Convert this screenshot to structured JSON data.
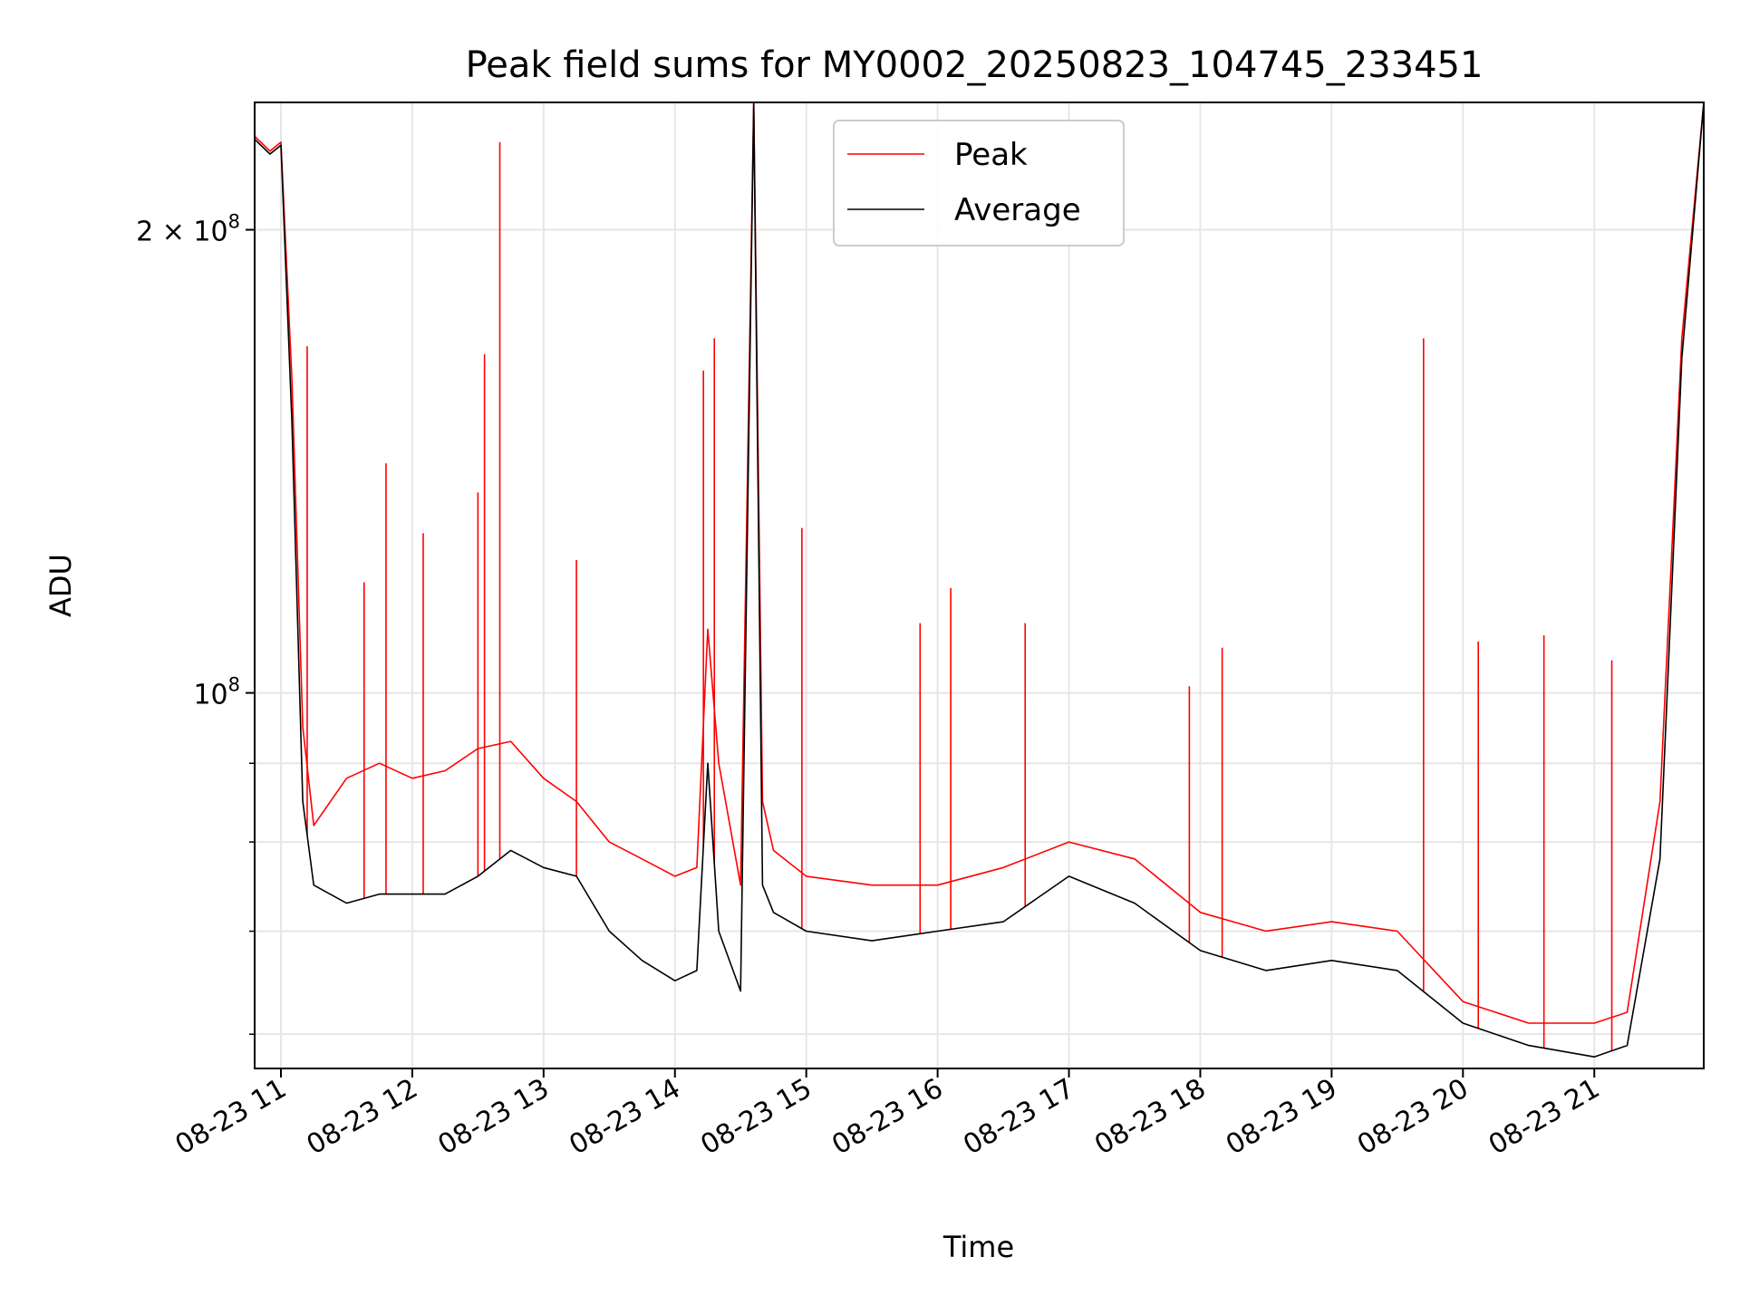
{
  "chart_data": {
    "type": "line",
    "title": "Peak field sums for MY0002_20250823_104745_233451",
    "xlabel": "Time",
    "ylabel": "ADU",
    "yscale": "log",
    "ylim": [
      57000000,
      242000000
    ],
    "xlim": [
      "2025-08-23 10:48",
      "2025-08-23 21:50"
    ],
    "grid": true,
    "legend_position": "upper center",
    "x_tick_labels": [
      "08-23 11",
      "08-23 12",
      "08-23 13",
      "08-23 14",
      "08-23 15",
      "08-23 16",
      "08-23 17",
      "08-23 18",
      "08-23 19",
      "08-23 20",
      "08-23 21"
    ],
    "y_tick_labels": [
      {
        "value": 200000000,
        "label": "2 × 10",
        "exponent": "8"
      },
      {
        "value": 100000000,
        "label": "10",
        "exponent": "8"
      }
    ],
    "series": [
      {
        "name": "Peak",
        "color": "#ff0000",
        "x": [
          "2025-08-23 10:48",
          "2025-08-23 10:55",
          "2025-08-23 11:00",
          "2025-08-23 11:05",
          "2025-08-23 11:10",
          "2025-08-23 11:15",
          "2025-08-23 11:30",
          "2025-08-23 11:45",
          "2025-08-23 12:00",
          "2025-08-23 12:15",
          "2025-08-23 12:30",
          "2025-08-23 12:45",
          "2025-08-23 13:00",
          "2025-08-23 13:15",
          "2025-08-23 13:30",
          "2025-08-23 13:45",
          "2025-08-23 14:00",
          "2025-08-23 14:10",
          "2025-08-23 14:15",
          "2025-08-23 14:20",
          "2025-08-23 14:30",
          "2025-08-23 14:36",
          "2025-08-23 14:40",
          "2025-08-23 14:45",
          "2025-08-23 15:00",
          "2025-08-23 15:30",
          "2025-08-23 16:00",
          "2025-08-23 16:30",
          "2025-08-23 17:00",
          "2025-08-23 17:30",
          "2025-08-23 18:00",
          "2025-08-23 18:30",
          "2025-08-23 19:00",
          "2025-08-23 19:30",
          "2025-08-23 20:00",
          "2025-08-23 20:30",
          "2025-08-23 21:00",
          "2025-08-23 21:15",
          "2025-08-23 21:30",
          "2025-08-23 21:40",
          "2025-08-23 21:50"
        ],
        "values": [
          230000000,
          225000000,
          228000000,
          160000000,
          95000000,
          82000000,
          88000000,
          90000000,
          88000000,
          89000000,
          92000000,
          93000000,
          88000000,
          85000000,
          80000000,
          78000000,
          76000000,
          77000000,
          110000000,
          90000000,
          75000000,
          242000000,
          85000000,
          79000000,
          76000000,
          75000000,
          75000000,
          77000000,
          80000000,
          78000000,
          72000000,
          70000000,
          71000000,
          70000000,
          63000000,
          61000000,
          61000000,
          62000000,
          85000000,
          170000000,
          242000000
        ],
        "spikes": [
          {
            "x": "2025-08-23 11:12",
            "value": 168000000
          },
          {
            "x": "2025-08-23 11:38",
            "value": 118000000
          },
          {
            "x": "2025-08-23 11:48",
            "value": 141000000
          },
          {
            "x": "2025-08-23 12:05",
            "value": 127000000
          },
          {
            "x": "2025-08-23 12:30",
            "value": 135000000
          },
          {
            "x": "2025-08-23 12:33",
            "value": 166000000
          },
          {
            "x": "2025-08-23 12:40",
            "value": 228000000
          },
          {
            "x": "2025-08-23 13:15",
            "value": 122000000
          },
          {
            "x": "2025-08-23 14:13",
            "value": 162000000
          },
          {
            "x": "2025-08-23 14:18",
            "value": 170000000
          },
          {
            "x": "2025-08-23 14:58",
            "value": 128000000
          },
          {
            "x": "2025-08-23 15:52",
            "value": 111000000
          },
          {
            "x": "2025-08-23 16:06",
            "value": 117000000
          },
          {
            "x": "2025-08-23 16:40",
            "value": 111000000
          },
          {
            "x": "2025-08-23 17:55",
            "value": 101000000
          },
          {
            "x": "2025-08-23 18:10",
            "value": 107000000
          },
          {
            "x": "2025-08-23 19:42",
            "value": 170000000
          },
          {
            "x": "2025-08-23 20:07",
            "value": 108000000
          },
          {
            "x": "2025-08-23 20:37",
            "value": 109000000
          },
          {
            "x": "2025-08-23 21:08",
            "value": 105000000
          }
        ]
      },
      {
        "name": "Average",
        "color": "#000000",
        "x": [
          "2025-08-23 10:48",
          "2025-08-23 10:55",
          "2025-08-23 11:00",
          "2025-08-23 11:05",
          "2025-08-23 11:10",
          "2025-08-23 11:15",
          "2025-08-23 11:30",
          "2025-08-23 11:45",
          "2025-08-23 12:00",
          "2025-08-23 12:15",
          "2025-08-23 12:30",
          "2025-08-23 12:45",
          "2025-08-23 13:00",
          "2025-08-23 13:15",
          "2025-08-23 13:30",
          "2025-08-23 13:45",
          "2025-08-23 14:00",
          "2025-08-23 14:10",
          "2025-08-23 14:15",
          "2025-08-23 14:20",
          "2025-08-23 14:30",
          "2025-08-23 14:36",
          "2025-08-23 14:40",
          "2025-08-23 14:45",
          "2025-08-23 15:00",
          "2025-08-23 15:30",
          "2025-08-23 16:00",
          "2025-08-23 16:30",
          "2025-08-23 17:00",
          "2025-08-23 17:30",
          "2025-08-23 18:00",
          "2025-08-23 18:30",
          "2025-08-23 19:00",
          "2025-08-23 19:30",
          "2025-08-23 20:00",
          "2025-08-23 20:30",
          "2025-08-23 21:00",
          "2025-08-23 21:15",
          "2025-08-23 21:30",
          "2025-08-23 21:40",
          "2025-08-23 21:50"
        ],
        "values": [
          229000000,
          224000000,
          227000000,
          150000000,
          85000000,
          75000000,
          73000000,
          74000000,
          74000000,
          74000000,
          76000000,
          79000000,
          77000000,
          76000000,
          70000000,
          67000000,
          65000000,
          66000000,
          90000000,
          70000000,
          64000000,
          242000000,
          75000000,
          72000000,
          70000000,
          69000000,
          70000000,
          71000000,
          76000000,
          73000000,
          68000000,
          66000000,
          67000000,
          66000000,
          61000000,
          59000000,
          58000000,
          59000000,
          78000000,
          165000000,
          242000000
        ]
      }
    ]
  }
}
